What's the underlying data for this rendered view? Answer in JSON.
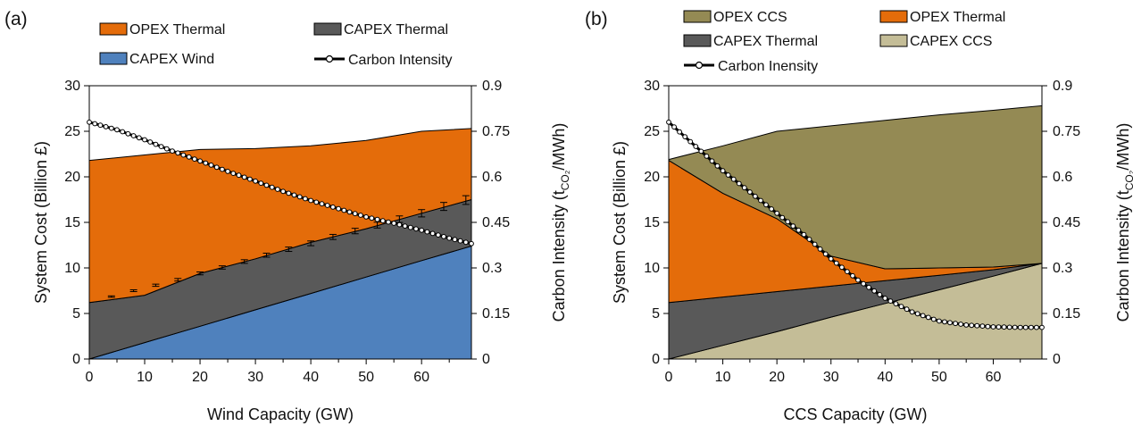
{
  "chart_data": [
    {
      "panel_label": "(a)",
      "type": "area",
      "xlabel": "Wind Capacity (GW)",
      "ylabel": "System Cost (Billion £)",
      "y2label_main": "Carbon Intensity (t",
      "y2label_sub": "CO₂",
      "y2label_end": "/MWh)",
      "xlim": [
        0,
        69
      ],
      "ylim": [
        0,
        30
      ],
      "y2lim": [
        0,
        0.9
      ],
      "x_ticks": [
        0,
        10,
        20,
        30,
        40,
        50,
        60
      ],
      "y_ticks": [
        0,
        5,
        10,
        15,
        20,
        25,
        30
      ],
      "y2_ticks": [
        "0",
        "0.15",
        "0.3",
        "0.45",
        "0.6",
        "0.75",
        "0.9"
      ],
      "x": [
        0,
        10,
        20,
        30,
        40,
        50,
        60,
        69
      ],
      "series": [
        {
          "name": "CAPEX Wind",
          "color": "#4f81bd",
          "kind": "stack",
          "values": [
            0,
            1.8,
            3.6,
            5.4,
            7.2,
            9.0,
            10.8,
            12.4
          ]
        },
        {
          "name": "CAPEX Thermal",
          "color": "#595959",
          "kind": "stack",
          "values": [
            6.2,
            5.2,
            5.8,
            5.6,
            5.6,
            5.3,
            5.2,
            5.1
          ]
        },
        {
          "name": "OPEX Thermal",
          "color": "#e46c0a",
          "kind": "stack",
          "values": [
            15.6,
            15.4,
            13.6,
            12.1,
            10.6,
            9.7,
            9.0,
            7.8
          ]
        },
        {
          "name": "Carbon Intensity",
          "color": "#000000",
          "kind": "line",
          "axis": "right",
          "x": [
            0,
            5,
            10,
            15,
            20,
            25,
            30,
            35,
            40,
            45,
            50,
            55,
            60,
            65,
            69
          ],
          "values": [
            0.78,
            0.755,
            0.722,
            0.685,
            0.652,
            0.618,
            0.586,
            0.552,
            0.522,
            0.495,
            0.468,
            0.447,
            0.424,
            0.398,
            0.38
          ]
        }
      ],
      "error_bars": {
        "x": [
          4,
          8,
          12,
          16,
          20,
          24,
          28,
          32,
          36,
          40,
          44,
          48,
          52,
          56,
          60,
          64,
          68
        ],
        "y": [
          6.85,
          7.5,
          8.1,
          8.7,
          9.4,
          10.05,
          10.7,
          11.4,
          12.05,
          12.7,
          13.4,
          14.05,
          14.7,
          15.35,
          16.0,
          16.75,
          17.45
        ],
        "err": [
          0.08,
          0.1,
          0.12,
          0.14,
          0.16,
          0.18,
          0.2,
          0.22,
          0.24,
          0.26,
          0.28,
          0.3,
          0.32,
          0.36,
          0.4,
          0.44,
          0.48
        ]
      },
      "legend": [
        "OPEX Thermal",
        "CAPEX Thermal",
        "CAPEX Wind",
        "Carbon Intensity"
      ],
      "legend_placement": "top"
    },
    {
      "panel_label": "(b)",
      "type": "area",
      "xlabel": "CCS Capacity (GW)",
      "ylabel": "System Cost (Billion £)",
      "y2label_main": "Carbon Intensity (t",
      "y2label_sub": "CO₂",
      "y2label_end": "/MWh)",
      "xlim": [
        0,
        69
      ],
      "ylim": [
        0,
        30
      ],
      "y2lim": [
        0,
        0.9
      ],
      "x_ticks": [
        0,
        10,
        20,
        30,
        40,
        50,
        60
      ],
      "y_ticks": [
        0,
        5,
        10,
        15,
        20,
        25,
        30
      ],
      "y2_ticks": [
        "0",
        "0.15",
        "0.3",
        "0.45",
        "0.6",
        "0.75",
        "0.9"
      ],
      "x": [
        0,
        10,
        20,
        30,
        40,
        50,
        60,
        69
      ],
      "series": [
        {
          "name": "CAPEX CCS",
          "color": "#c4bd97",
          "kind": "stack",
          "values": [
            0,
            1.5,
            3.0,
            4.6,
            6.1,
            7.6,
            9.1,
            10.5
          ]
        },
        {
          "name": "CAPEX Thermal",
          "color": "#595959",
          "kind": "stack",
          "values": [
            6.2,
            5.3,
            4.4,
            3.4,
            2.5,
            1.6,
            0.7,
            0.0
          ]
        },
        {
          "name": "OPEX Thermal",
          "color": "#e46c0a",
          "kind": "stack",
          "values": [
            15.6,
            11.4,
            8.0,
            3.3,
            1.3,
            0.8,
            0.3,
            0.0
          ]
        },
        {
          "name": "OPEX CCS",
          "color": "#948a54",
          "kind": "stack",
          "values": [
            0.1,
            5.2,
            9.6,
            14.3,
            16.3,
            16.8,
            17.2,
            17.3
          ]
        },
        {
          "name": "Carbon Inensity",
          "color": "#000000",
          "kind": "line",
          "axis": "right",
          "x": [
            0,
            5,
            10,
            15,
            20,
            25,
            30,
            35,
            40,
            45,
            50,
            55,
            60,
            65,
            69
          ],
          "values": [
            0.78,
            0.7,
            0.62,
            0.55,
            0.48,
            0.41,
            0.33,
            0.26,
            0.2,
            0.155,
            0.125,
            0.112,
            0.106,
            0.104,
            0.104
          ]
        }
      ],
      "legend": [
        "OPEX CCS",
        "OPEX Thermal",
        "CAPEX Thermal",
        "CAPEX CCS",
        "Carbon Inensity"
      ],
      "legend_placement": "top"
    }
  ]
}
